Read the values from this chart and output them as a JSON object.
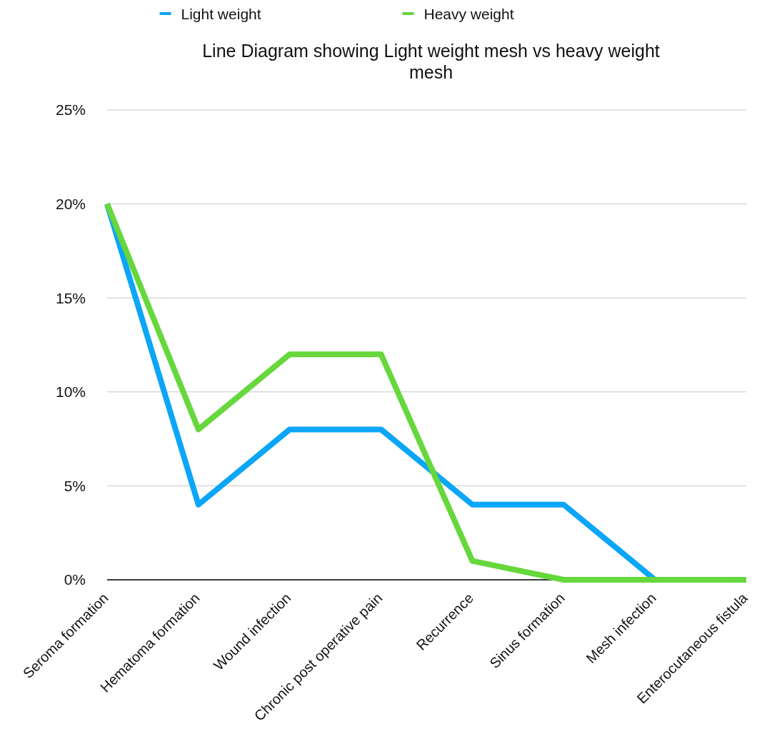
{
  "chart_data": {
    "type": "line",
    "title": "Line Diagram showing Light weight mesh vs heavy weight mesh",
    "categories": [
      "Seroma formation",
      "Hematoma formation",
      "Wound infection",
      "Chronic post operative pain",
      "Recurrence",
      "Sinus formation",
      "Mesh infection",
      "Enterocutaneous fistula"
    ],
    "series": [
      {
        "name": "Light weight",
        "color": "#0ba6f7",
        "values": [
          20,
          4,
          8,
          8,
          4,
          4,
          0,
          0
        ]
      },
      {
        "name": "Heavy weight",
        "color": "#66d73c",
        "values": [
          20,
          8,
          12,
          12,
          1,
          0,
          0,
          0
        ]
      }
    ],
    "ylim": [
      0,
      25
    ],
    "yticks": [
      {
        "value": 0,
        "label": "0%"
      },
      {
        "value": 5,
        "label": "5%"
      },
      {
        "value": 10,
        "label": "10%"
      },
      {
        "value": 15,
        "label": "15%"
      },
      {
        "value": 20,
        "label": "20%"
      },
      {
        "value": 25,
        "label": "25%"
      }
    ],
    "grid": "y",
    "legend": "top",
    "marker": "none",
    "line_style": "solid"
  }
}
